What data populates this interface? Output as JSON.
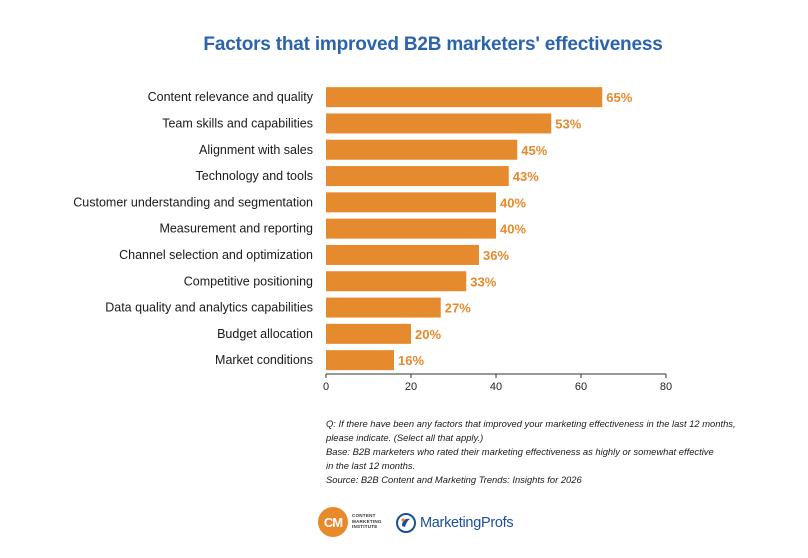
{
  "chart_data": {
    "type": "bar",
    "orientation": "horizontal",
    "title": "Factors that improved B2B marketers' effectiveness",
    "categories": [
      "Content relevance and quality",
      "Team skills and capabilities",
      "Alignment with sales",
      "Technology and tools",
      "Customer understanding and segmentation",
      "Measurement and reporting",
      "Channel selection and optimization",
      "Competitive positioning",
      "Data quality and analytics capabilities",
      "Budget allocation",
      "Market conditions"
    ],
    "values": [
      65,
      53,
      45,
      43,
      40,
      40,
      36,
      33,
      27,
      20,
      16
    ],
    "value_labels": [
      "65%",
      "53%",
      "45%",
      "43%",
      "40%",
      "40%",
      "36%",
      "33%",
      "27%",
      "20%",
      "16%"
    ],
    "xlim": [
      0,
      80
    ],
    "xticks": [
      0,
      20,
      40,
      60,
      80
    ],
    "xtick_labels": [
      "0",
      "20",
      "40",
      "60",
      "80"
    ],
    "bar_color": "#e68a2e",
    "grid": false,
    "legend": "none"
  },
  "notes": {
    "question": "Q: If there have been any factors that improved your marketing effectiveness in the last 12 months,\nplease indicate. (Select all that apply.)",
    "base": "Base: B2B marketers who rated their marketing effectiveness as highly or somewhat effective\nin the last 12 months.",
    "source": "Source: B2B Content and Marketing Trends: Insights for 2026"
  },
  "logos": {
    "cmi_mark": "CM",
    "cmi_text": "CONTENT\nMARKETING\nINSTITUTE",
    "mp_text": "MarketingProfs",
    "cmi_color": "#e8892c",
    "mp_color": "#1b4f9c"
  },
  "title_color": "#2a64ad"
}
